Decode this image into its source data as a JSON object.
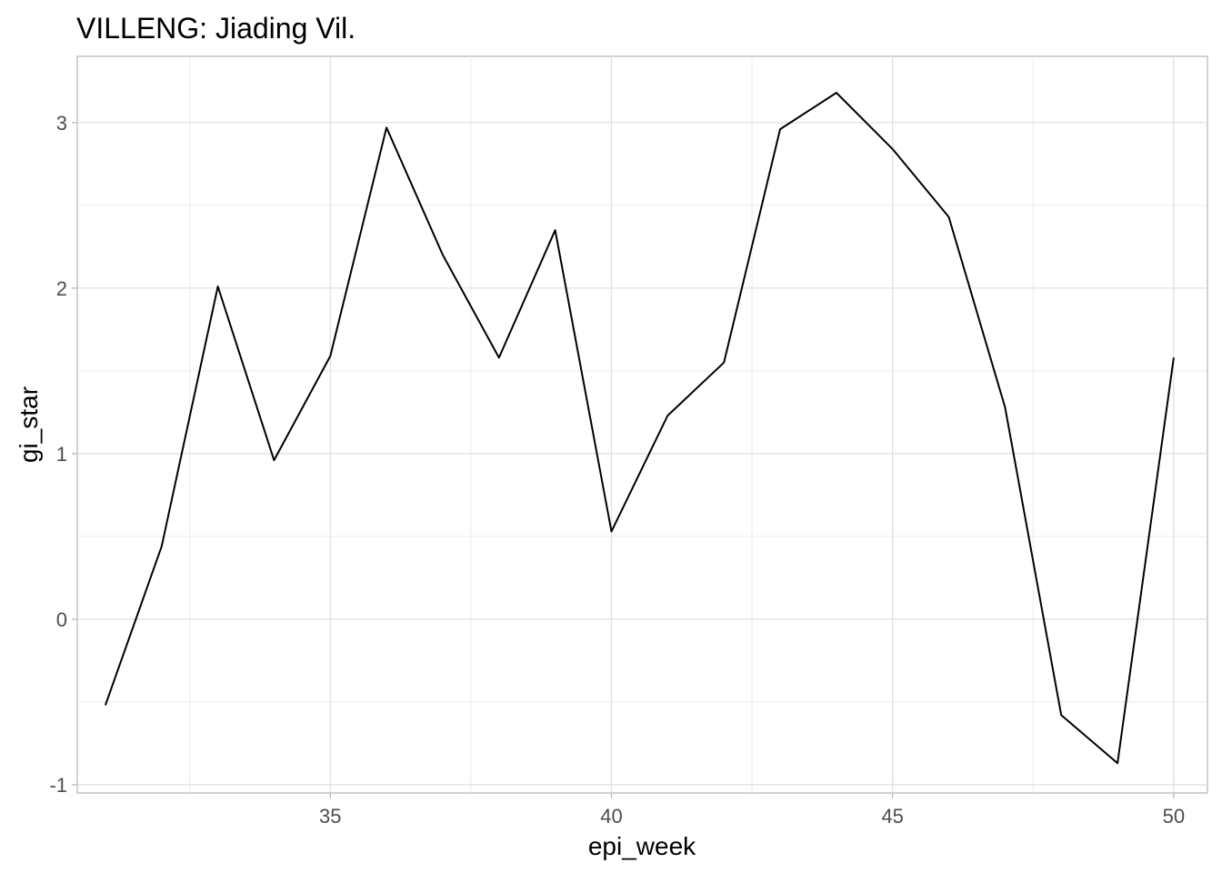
{
  "chart_data": {
    "type": "line",
    "title": "VILLENG: Jiading Vil.",
    "xlabel": "epi_week",
    "ylabel": "gi_star",
    "xlim": [
      30.5,
      50.6
    ],
    "ylim": [
      -1.05,
      3.4
    ],
    "x_ticks": [
      35,
      40,
      45,
      50
    ],
    "x_tick_labels": [
      "35",
      "40",
      "45",
      "50"
    ],
    "y_ticks": [
      -1,
      0,
      1,
      2,
      3
    ],
    "y_tick_labels": [
      "-1",
      "0",
      "1",
      "2",
      "3"
    ],
    "grid": true,
    "legend": "none",
    "series": [
      {
        "color": "#000000",
        "x": [
          31,
          32,
          33,
          34,
          35,
          36,
          37,
          38,
          39,
          40,
          41,
          42,
          43,
          44,
          45,
          46,
          47,
          48,
          49,
          50
        ],
        "values": [
          -0.52,
          0.44,
          2.01,
          0.96,
          1.59,
          2.97,
          2.2,
          1.58,
          2.35,
          0.53,
          1.23,
          1.55,
          2.96,
          3.18,
          2.84,
          2.43,
          1.28,
          -0.58,
          -0.87,
          1.58
        ]
      }
    ]
  }
}
